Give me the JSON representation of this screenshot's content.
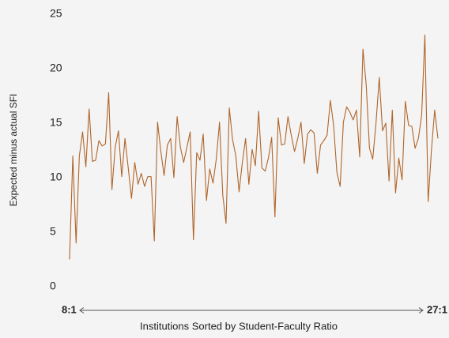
{
  "chart_data": {
    "type": "line",
    "ylabel": "Expected minus actual SFI",
    "xlabel": "Institutions Sorted by Student-Faculty Ratio",
    "x_start_label": "8:1",
    "x_end_label": "27:1",
    "color": "#b0652a",
    "ylim": [
      0,
      25
    ],
    "yticks": [
      0,
      5,
      10,
      15,
      20,
      25
    ],
    "grid": false,
    "values": [
      2.5,
      12,
      4,
      12,
      14.2,
      11,
      16.3,
      11.5,
      11.6,
      13.4,
      12.9,
      13.1,
      17.8,
      8.9,
      12.8,
      14.3,
      10.1,
      13.6,
      10.9,
      8.1,
      11.4,
      9.4,
      10.4,
      9.2,
      10.1,
      10.1,
      4.2,
      15.1,
      12.4,
      10.2,
      13,
      13.6,
      10,
      15.6,
      12.8,
      11.4,
      12.8,
      14.2,
      4.3,
      12.3,
      11.6,
      14,
      7.9,
      10.8,
      9.5,
      11.7,
      15.1,
      8.4,
      5.8,
      16.4,
      13.5,
      12,
      8.7,
      11.4,
      13.6,
      9.4,
      12.6,
      11.1,
      16.1,
      10.9,
      10.6,
      11.8,
      13.7,
      6.4,
      15.5,
      13,
      13.1,
      15.6,
      13.9,
      12.4,
      13.6,
      15.1,
      11.3,
      14,
      14.4,
      14.1,
      10.4,
      13,
      13.4,
      13.9,
      17.1,
      14.8,
      10.5,
      9.2,
      15.1,
      16.5,
      16,
      15.3,
      16.2,
      11.9,
      21.8,
      18.5,
      12.7,
      11.7,
      15,
      19.2,
      14.3,
      15,
      9.7,
      16.2,
      8.6,
      11.8,
      9.8,
      17,
      14.8,
      14.7,
      12.7,
      13.6,
      15.7,
      23.1,
      7.8,
      12.5,
      16.2,
      13.6
    ]
  }
}
